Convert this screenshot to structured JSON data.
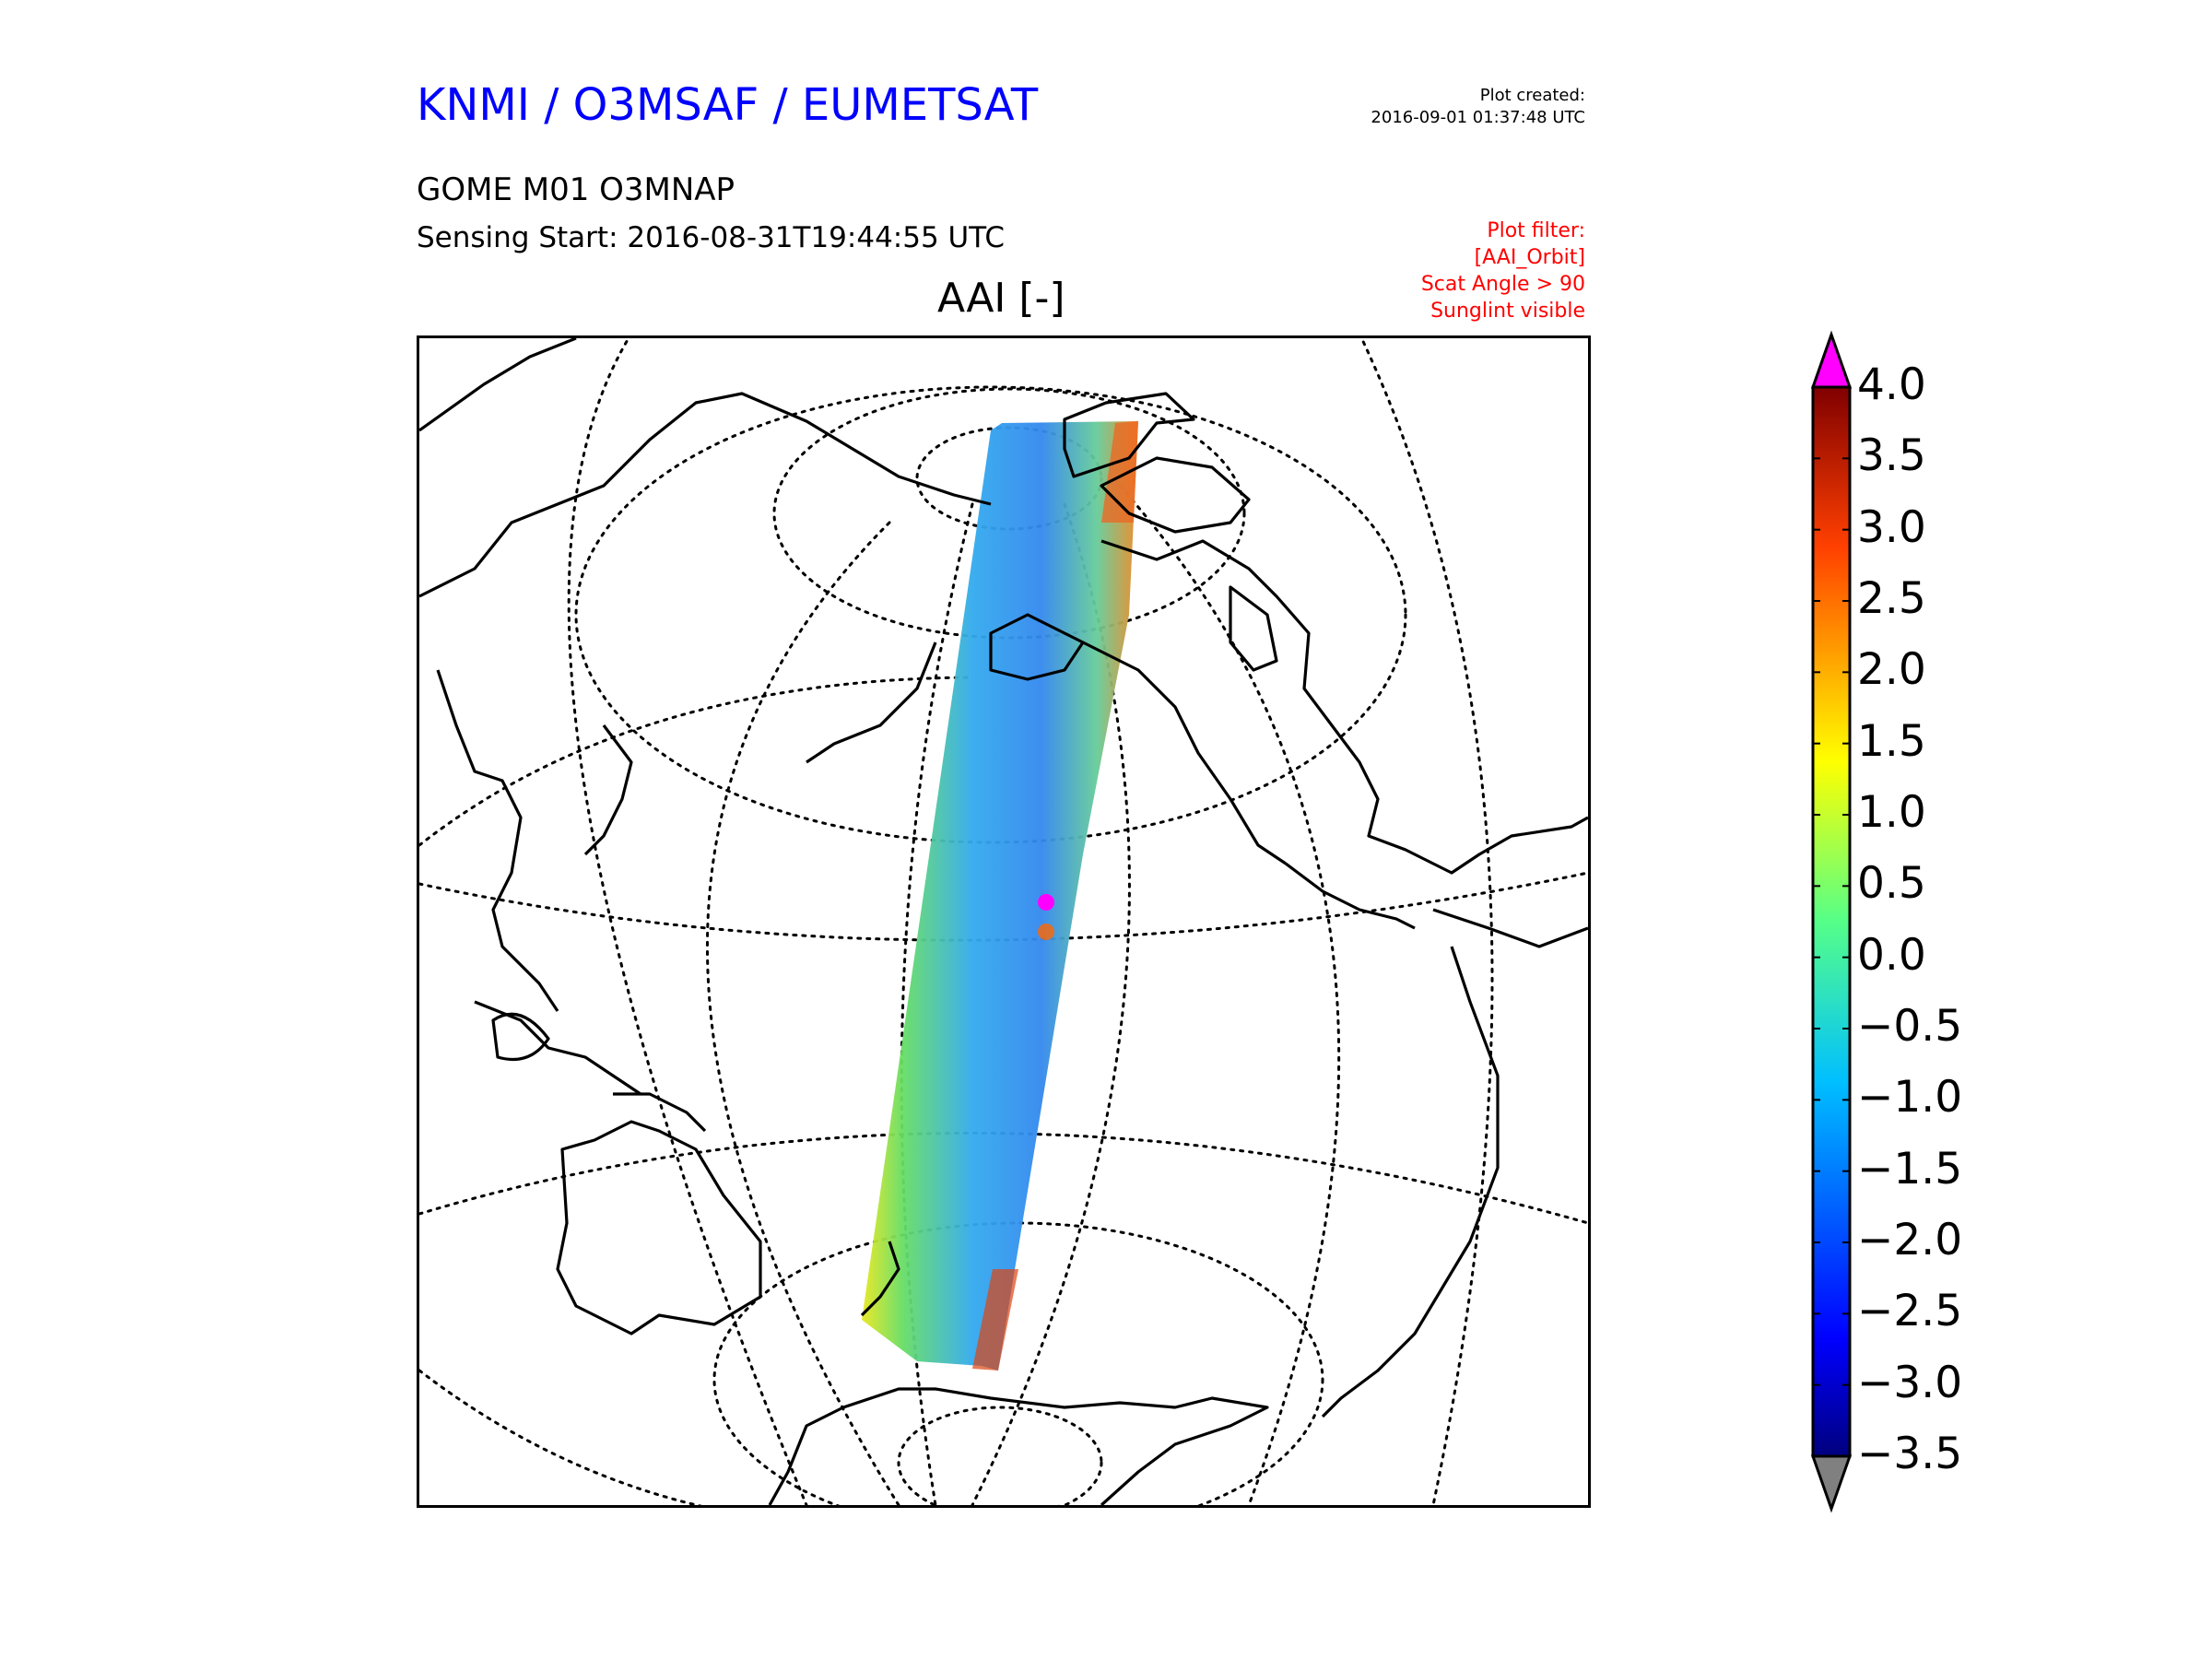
{
  "header": {
    "org_title": "KNMI / O3MSAF / EUMETSAT",
    "created_label": "Plot created:",
    "created_value": "2016-09-01 01:37:48 UTC",
    "product": "GOME M01 O3MNAP",
    "sensing_start": "Sensing Start: 2016-08-31T19:44:55 UTC",
    "filter_lines": [
      "Plot filter:",
      "[AAI_Orbit]",
      "Scat Angle > 90",
      "Sunglint visible"
    ]
  },
  "map": {
    "title": "AAI [-]",
    "projection": "orthographic",
    "graticule_style": "dotted",
    "swath_value_range": [
      -3.5,
      4.0
    ]
  },
  "colorbar": {
    "ticks": [
      "4.0",
      "3.5",
      "3.0",
      "2.5",
      "2.0",
      "1.5",
      "1.0",
      "0.5",
      "0.0",
      "−0.5",
      "−1.0",
      "−1.5",
      "−2.0",
      "−2.5",
      "−3.0",
      "−3.5"
    ],
    "colormap": "jet",
    "over_color": "#ff00ff",
    "under_color": "#808080"
  }
}
